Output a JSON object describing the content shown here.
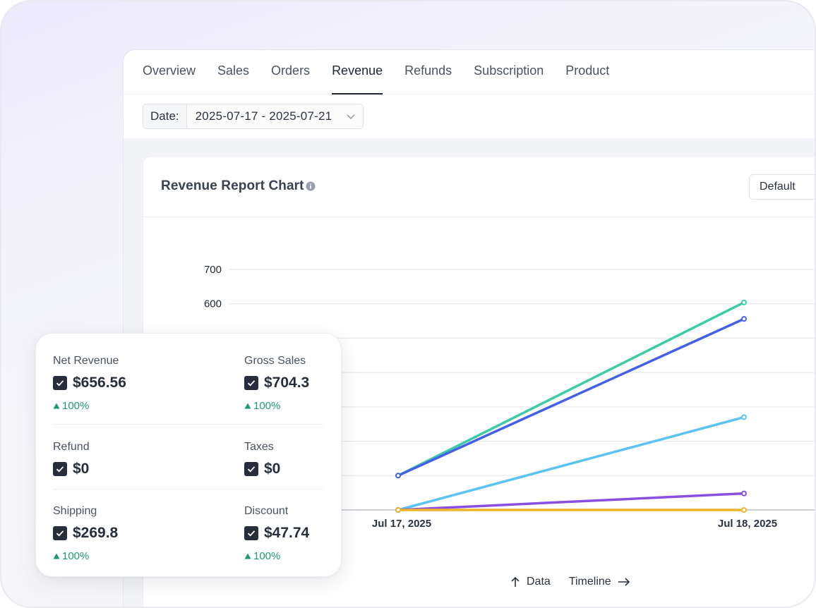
{
  "tabs": [
    {
      "label": "Overview",
      "active": false
    },
    {
      "label": "Sales",
      "active": false
    },
    {
      "label": "Orders",
      "active": false
    },
    {
      "label": "Revenue",
      "active": true
    },
    {
      "label": "Refunds",
      "active": false
    },
    {
      "label": "Subscription",
      "active": false
    },
    {
      "label": "Product",
      "active": false
    }
  ],
  "date_filter": {
    "label": "Date:",
    "value": "2025-07-17 - 2025-07-21"
  },
  "card": {
    "title": "Revenue Report Chart",
    "select_value": "Default"
  },
  "chart_footer": {
    "data_label": "Data",
    "timeline_label": "Timeline"
  },
  "chart_data": {
    "type": "line",
    "x": [
      "Jul 17, 2025",
      "Jul 18, 2025"
    ],
    "yticks": [
      600,
      700
    ],
    "ylim": [
      0,
      700
    ],
    "grid": true,
    "series": [
      {
        "color": "#3cc9a7",
        "values": [
          100,
          604
        ]
      },
      {
        "color": "#4360e6",
        "values": [
          100,
          556
        ]
      },
      {
        "color": "#5bc3f2",
        "values": [
          0,
          270
        ]
      },
      {
        "color": "#8a4fe0",
        "values": [
          0,
          48
        ]
      },
      {
        "color": "#f0b429",
        "values": [
          0,
          0
        ]
      }
    ]
  },
  "stats": {
    "net_revenue": {
      "label": "Net Revenue",
      "value": "$656.56",
      "change": "100%"
    },
    "gross_sales": {
      "label": "Gross Sales",
      "value": "$704.3",
      "change": "100%"
    },
    "refund": {
      "label": "Refund",
      "value": "$0"
    },
    "taxes": {
      "label": "Taxes",
      "value": "$0"
    },
    "shipping": {
      "label": "Shipping",
      "value": "$269.8",
      "change": "100%"
    },
    "discount": {
      "label": "Discount",
      "value": "$47.74",
      "change": "100%"
    }
  },
  "colors": {
    "positive": "#1f9a6b",
    "dark": "#262d3b"
  }
}
